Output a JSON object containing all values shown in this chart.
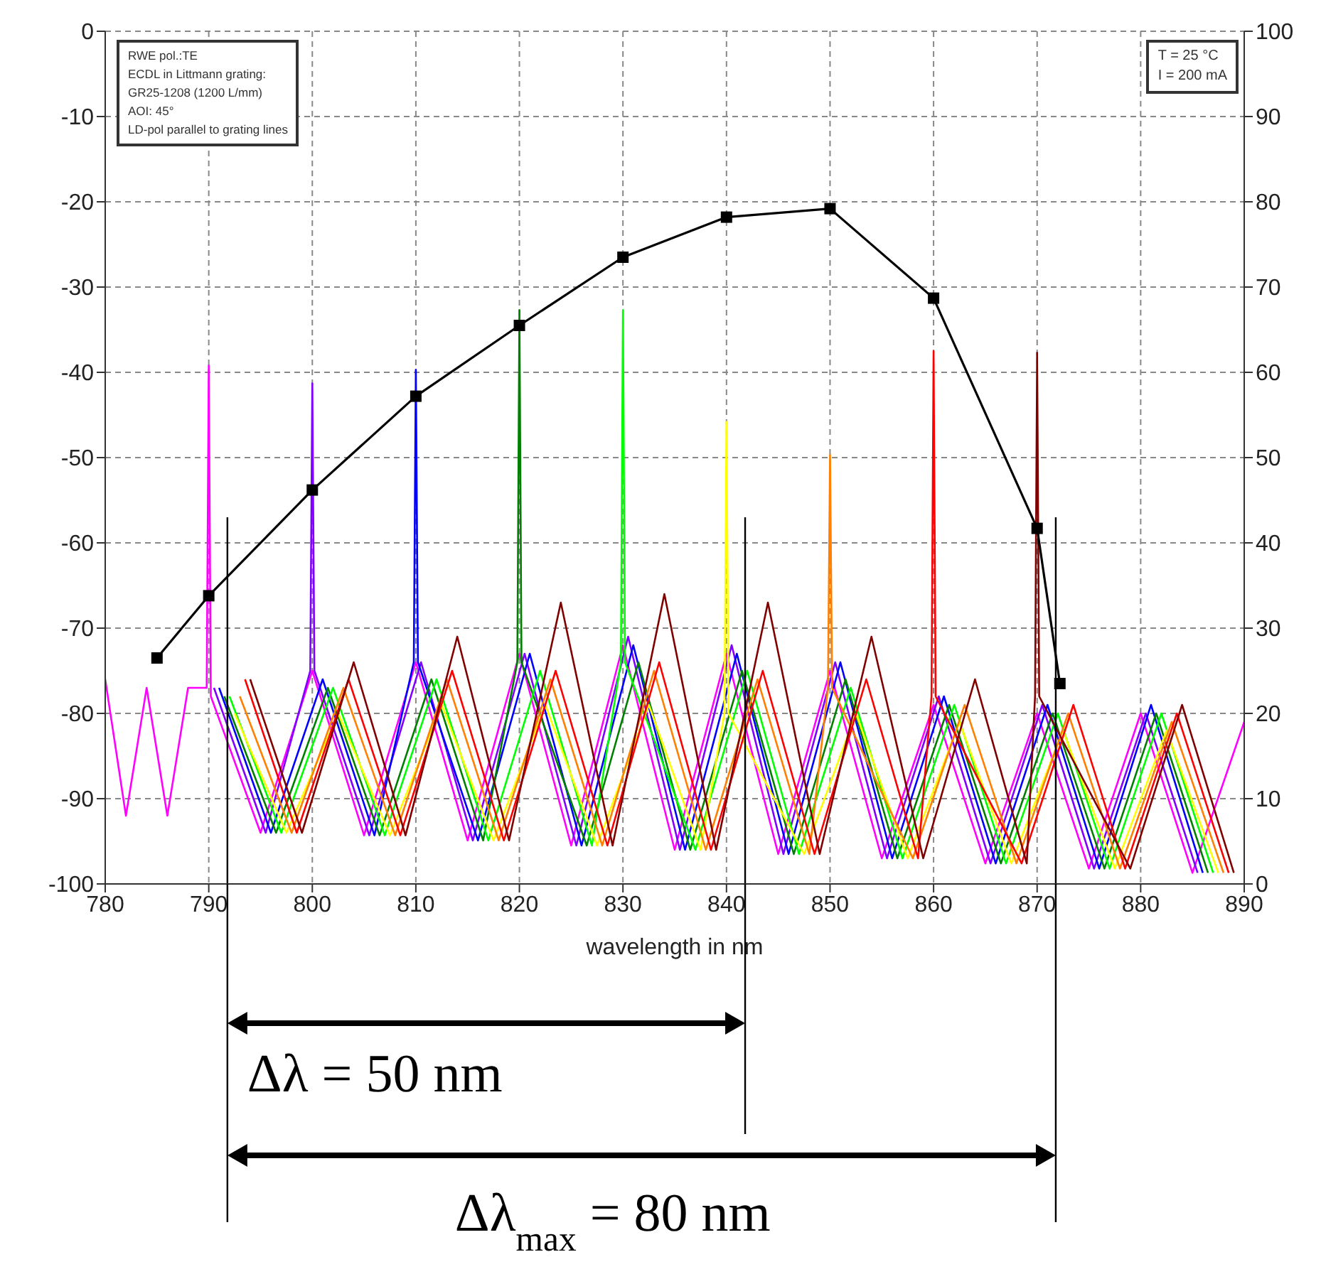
{
  "chart_data": {
    "type": "line",
    "xlabel": "wavelength in nm",
    "xlim": [
      780,
      890
    ],
    "xticks": [
      780,
      790,
      800,
      810,
      820,
      830,
      840,
      850,
      860,
      870,
      880,
      890
    ],
    "ylim": [
      -100,
      0
    ],
    "yticks": [
      -100,
      -90,
      -80,
      -70,
      -60,
      -50,
      -40,
      -30,
      -20,
      -10,
      0
    ],
    "y2lim": [
      0,
      100
    ],
    "y2ticks": [
      0,
      10,
      20,
      30,
      40,
      50,
      60,
      70,
      80,
      90,
      100
    ],
    "grid": true,
    "line_style": "solid",
    "series": [
      {
        "color": "#ff00ff",
        "marker": "none",
        "x": [
          780,
          782,
          784,
          786,
          788,
          789.8,
          790,
          790.2,
          795,
          800,
          805,
          810,
          815,
          820,
          825,
          830,
          835,
          840,
          845,
          850,
          855,
          860,
          865,
          870,
          875,
          880,
          885,
          890
        ],
        "values": [
          -76,
          -92,
          -77,
          -92,
          -77,
          -77,
          -39.2,
          -78,
          -94,
          -75,
          -94.3,
          -74,
          -94.9,
          -73,
          -95.5,
          -72,
          -96,
          -73,
          -96.5,
          -75,
          -97,
          -79,
          -97.6,
          -80,
          -98.2,
          -80,
          -98.7,
          -81
        ]
      },
      {
        "color": "#8000ff",
        "marker": "none",
        "x": [
          790.5,
          795.5,
          799.8,
          800,
          800.2,
          805.5,
          810.5,
          815.5,
          820.5,
          825.5,
          830.5,
          835.5,
          840.5,
          845.5,
          850.5,
          855.5,
          860.5,
          865.5,
          870.5,
          875.5,
          880.5,
          885.5
        ],
        "values": [
          -77,
          -94,
          -75,
          -41.3,
          -75,
          -94.3,
          -74,
          -94.9,
          -73,
          -95.5,
          -71,
          -96,
          -72,
          -96.5,
          -74,
          -97,
          -78,
          -97.6,
          -79,
          -98.2,
          -80,
          -98.7
        ]
      },
      {
        "color": "#0000ff",
        "marker": "none",
        "x": [
          791,
          796,
          801,
          806,
          809.8,
          810,
          810.2,
          816,
          821,
          826,
          831,
          836,
          841,
          846,
          851,
          856,
          861,
          866,
          871,
          876,
          881,
          886
        ],
        "values": [
          -77,
          -94,
          -76,
          -94.3,
          -74,
          -39.7,
          -74,
          -94.9,
          -73,
          -95.5,
          -72,
          -96,
          -73,
          -96.5,
          -74,
          -97,
          -78,
          -97.6,
          -79,
          -98.2,
          -79,
          -98.7
        ]
      },
      {
        "color": "#008000",
        "marker": "none",
        "x": [
          791.5,
          796.5,
          801.5,
          806.5,
          811.5,
          816.5,
          819.8,
          820,
          820.2,
          826.5,
          831.5,
          836.5,
          841.5,
          846.5,
          851.5,
          856.5,
          861.5,
          866.5,
          871.5,
          876.5,
          881.5,
          886.5
        ],
        "values": [
          -78,
          -94,
          -77,
          -94.3,
          -76,
          -94.9,
          -74,
          -32.7,
          -74,
          -95.5,
          -74,
          -96,
          -75,
          -96.5,
          -76,
          -97,
          -79,
          -97.6,
          -80,
          -98.2,
          -80,
          -98.7
        ]
      },
      {
        "color": "#00ff00",
        "marker": "none",
        "x": [
          792,
          797,
          802,
          807,
          812,
          817,
          822,
          827,
          829.8,
          830,
          830.2,
          837,
          842,
          847,
          852,
          857,
          862,
          867,
          872,
          877,
          882,
          887
        ],
        "values": [
          -78,
          -94,
          -77,
          -94.3,
          -76,
          -94.9,
          -75,
          -95.5,
          -74,
          -32.7,
          -74,
          -96,
          -75,
          -96.5,
          -77,
          -97,
          -79,
          -97.6,
          -80,
          -98.2,
          -80,
          -98.7
        ]
      },
      {
        "color": "#ffff00",
        "marker": "none",
        "x": [
          792.5,
          797.5,
          802.5,
          807.5,
          812.5,
          817.5,
          822.5,
          827.5,
          832.5,
          837.5,
          839.8,
          840,
          840.2,
          847.5,
          852.5,
          857.5,
          862.5,
          867.5,
          872.5,
          877.5,
          882.5,
          887.5
        ],
        "values": [
          -80,
          -94,
          -80,
          -94.3,
          -79,
          -94.9,
          -79,
          -95.5,
          -79,
          -96,
          -80,
          -45.8,
          -80,
          -96.5,
          -80,
          -97,
          -81,
          -97.6,
          -82,
          -98.2,
          -82,
          -98.7
        ]
      },
      {
        "color": "#ff8000",
        "marker": "none",
        "x": [
          793,
          798,
          803,
          808,
          813,
          818,
          823,
          828,
          833,
          838,
          843,
          848,
          849.8,
          850,
          850.2,
          858,
          863,
          868,
          873,
          878,
          883,
          888
        ],
        "values": [
          -78,
          -94,
          -77,
          -94.3,
          -76,
          -94.9,
          -76,
          -95.5,
          -75,
          -96,
          -76,
          -96.5,
          -77,
          -49.7,
          -77,
          -97,
          -79,
          -97.6,
          -80,
          -98.2,
          -81,
          -98.7
        ]
      },
      {
        "color": "#ff0000",
        "marker": "none",
        "x": [
          793.5,
          798.5,
          803.5,
          808.5,
          813.5,
          818.5,
          823.5,
          828.5,
          833.5,
          838.5,
          843.5,
          848.5,
          853.5,
          858.5,
          859.8,
          860,
          860.2,
          868.5,
          873.5,
          878.5,
          883.5,
          888.5
        ],
        "values": [
          -76,
          -94,
          -76,
          -94.3,
          -75,
          -94.9,
          -75,
          -95.5,
          -74,
          -96,
          -75,
          -96.5,
          -76,
          -97,
          -78,
          -37.5,
          -78,
          -97.6,
          -79,
          -98.2,
          -80,
          -98.7
        ]
      },
      {
        "color": "#800000",
        "marker": "none",
        "x": [
          794,
          799,
          804,
          809,
          814,
          819,
          824,
          829,
          834,
          839,
          844,
          849,
          854,
          859,
          864,
          869,
          869.8,
          870,
          870.2,
          879,
          884,
          889
        ],
        "values": [
          -76,
          -94,
          -74,
          -94.3,
          -71,
          -94.9,
          -67,
          -95.5,
          -66,
          -96,
          -67,
          -96.5,
          -71,
          -97,
          -76,
          -97.6,
          -78,
          -37.7,
          -78,
          -98.2,
          -79,
          -98.7
        ]
      },
      {
        "color": "#000000",
        "marker": "square",
        "axis": "y2",
        "x": [
          785,
          790,
          800,
          810,
          820,
          830,
          840,
          850,
          860,
          870,
          872.2
        ],
        "values": [
          26.5,
          33.8,
          46.2,
          57.2,
          65.5,
          73.5,
          78.2,
          79.2,
          68.7,
          41.7,
          23.5
        ]
      }
    ],
    "ref_lines": [
      {
        "axis": "x",
        "value": 791.8,
        "color": "#000000"
      },
      {
        "axis": "x",
        "value": 841.8,
        "color": "#000000"
      },
      {
        "axis": "x",
        "value": 871.8,
        "color": "#000000"
      }
    ],
    "annotations": [
      "RWE pol.:TE\nECDL in Littmann grating:\nGR25-1208 (1200 L/mm)\nAOI: 45°\nLD-pol parallel to grating lines",
      "T = 25 °C\nI = 200 mA",
      "Δλ = 50 nm",
      "Δλ$_{max}$ = 80 nm"
    ]
  }
}
